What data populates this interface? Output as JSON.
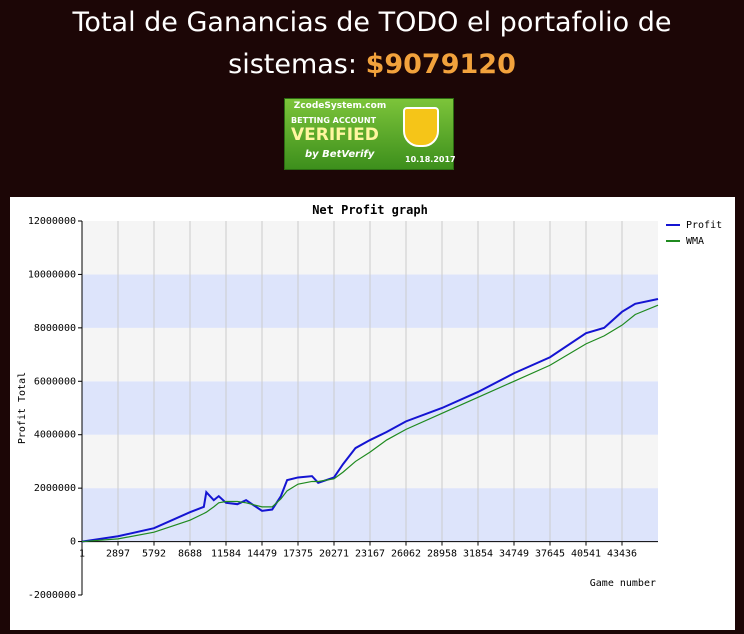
{
  "header": {
    "title": "Total de Ganancias de TODO el portafolio de sistemas:",
    "amount": "$9079120"
  },
  "badge": {
    "site": "ZcodeSystem.com",
    "line1": "BETTING ACCOUNT",
    "line2": "VERIFIED",
    "by": "by BetVerify",
    "date": "10.18.2017"
  },
  "chart_data": {
    "type": "line",
    "title": "Net Profit graph",
    "x_label": "Game number",
    "y_label": "Profit Total",
    "x": [
      1,
      2897,
      5792,
      8688,
      9800,
      10000,
      10600,
      11000,
      11584,
      12500,
      13200,
      14479,
      15300,
      16000,
      16500,
      17375,
      18500,
      19000,
      20271,
      21000,
      22000,
      23167,
      24500,
      26062,
      28958,
      31854,
      34749,
      37645,
      40541,
      42000,
      43436,
      44500,
      46332
    ],
    "series": [
      {
        "name": "Profit",
        "color": "#1414d2",
        "values": [
          0,
          200000,
          500000,
          1100000,
          1300000,
          1850000,
          1550000,
          1700000,
          1450000,
          1400000,
          1550000,
          1150000,
          1200000,
          1700000,
          2300000,
          2400000,
          2450000,
          2200000,
          2400000,
          2900000,
          3500000,
          3800000,
          4100000,
          4500000,
          5000000,
          5600000,
          6300000,
          6900000,
          7800000,
          8000000,
          8600000,
          8900000,
          9079120
        ]
      },
      {
        "name": "WMA",
        "color": "#1f8a1f",
        "values": [
          0,
          100000,
          350000,
          800000,
          1050000,
          1100000,
          1300000,
          1450000,
          1500000,
          1500000,
          1450000,
          1300000,
          1300000,
          1600000,
          1900000,
          2150000,
          2250000,
          2250000,
          2350000,
          2600000,
          3000000,
          3350000,
          3800000,
          4200000,
          4800000,
          5400000,
          6000000,
          6600000,
          7400000,
          7700000,
          8100000,
          8500000,
          8850000
        ]
      }
    ],
    "xlim": [
      1,
      46332
    ],
    "xticks": [
      1,
      2897,
      5792,
      8688,
      11584,
      14479,
      17375,
      20271,
      23167,
      26062,
      28958,
      31854,
      34749,
      37645,
      40541,
      43436
    ],
    "ylim": [
      -2000000,
      12000000
    ],
    "yticks": [
      -2000000,
      0,
      2000000,
      4000000,
      6000000,
      8000000,
      10000000,
      12000000
    ],
    "grid": true,
    "legend": "top-right"
  }
}
